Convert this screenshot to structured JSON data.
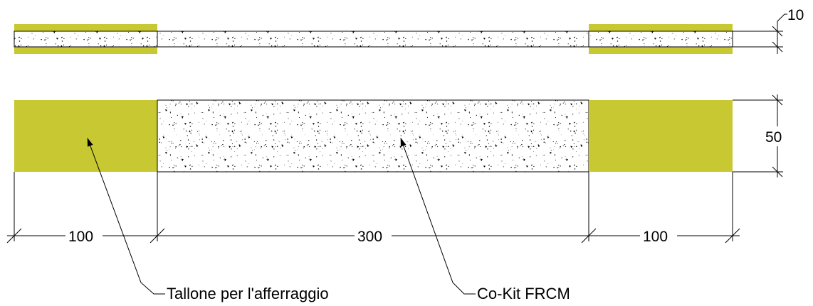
{
  "colors": {
    "tab": "#c8c832",
    "background": "#ffffff",
    "line": "#000000",
    "speckle": "#000000"
  },
  "dimensions": {
    "thickness": "10",
    "width": "50",
    "tab_left_length": "100",
    "gauge_length": "300",
    "tab_right_length": "100"
  },
  "labels": {
    "tab": "Tallone per l'afferraggio",
    "material": "Co-Kit FRCM"
  },
  "pattern": {
    "texture": "concrete-speckle"
  }
}
